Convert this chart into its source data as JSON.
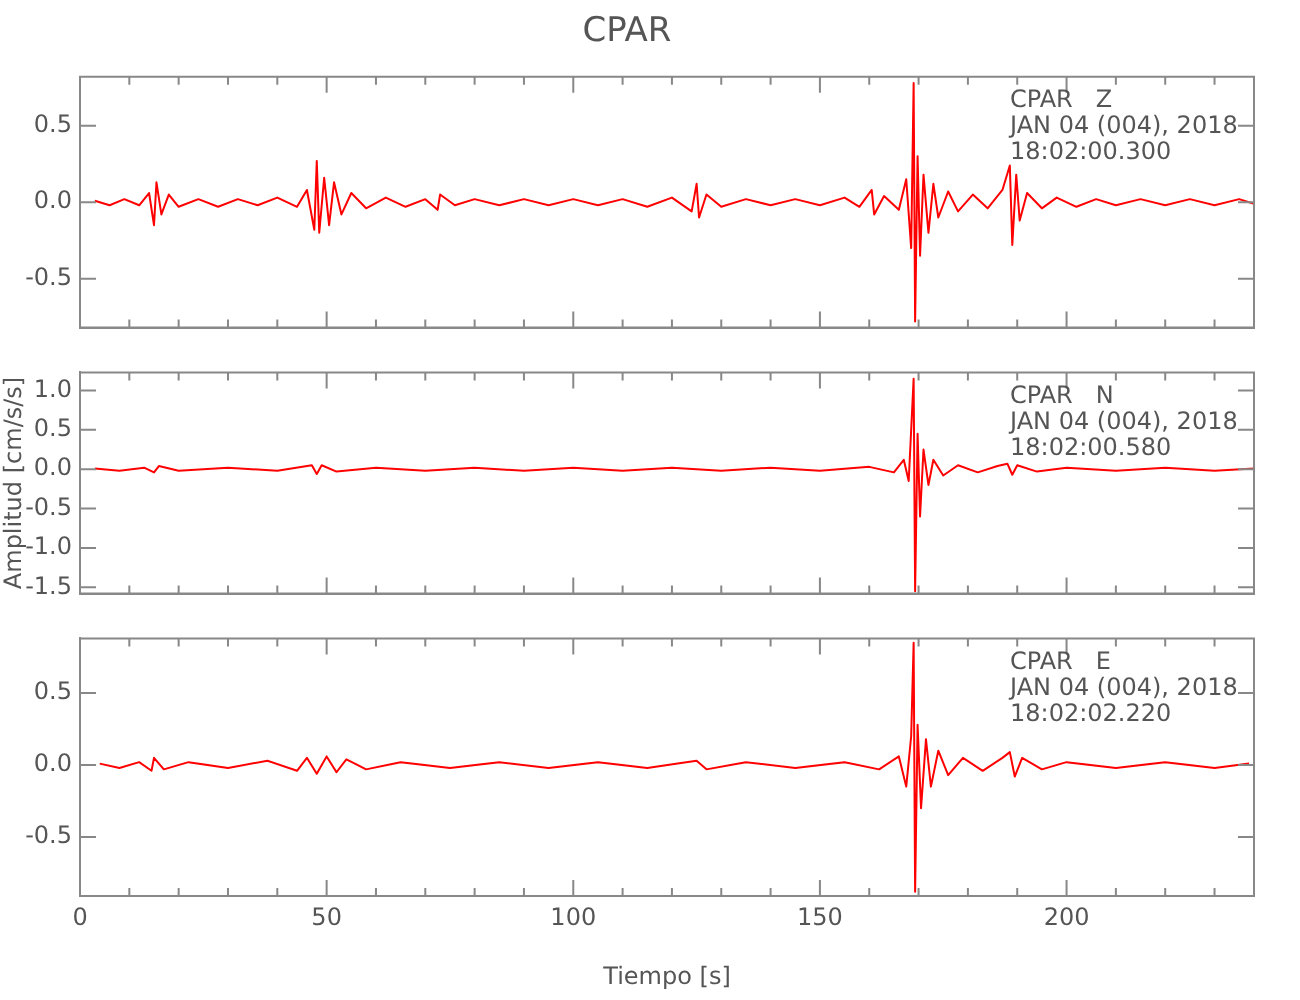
{
  "chart_data": [
    {
      "type": "line",
      "title": "CPAR",
      "annotations": [
        "CPAR   Z",
        "JAN 04 (004), 2018",
        "18:02:00.300"
      ],
      "xlim": [
        0,
        238
      ],
      "ylim": [
        -0.82,
        0.82
      ],
      "xticks": [
        0,
        {
          "value": 10,
          "label": null
        },
        {
          "value": 20,
          "label": null
        },
        {
          "value": 30,
          "label": null
        },
        {
          "value": 40,
          "label": null
        },
        50,
        {
          "value": 60,
          "label": null
        },
        {
          "value": 70,
          "label": null
        },
        {
          "value": 80,
          "label": null
        },
        {
          "value": 90,
          "label": null
        },
        100,
        {
          "value": 110,
          "label": null
        },
        {
          "value": 120,
          "label": null
        },
        {
          "value": 130,
          "label": null
        },
        {
          "value": 140,
          "label": null
        },
        150,
        {
          "value": 160,
          "label": null
        },
        {
          "value": 170,
          "label": null
        },
        {
          "value": 180,
          "label": null
        },
        {
          "value": 190,
          "label": null
        },
        200,
        {
          "value": 210,
          "label": null
        },
        {
          "value": 220,
          "label": null
        },
        {
          "value": 230,
          "label": null
        }
      ],
      "yticks": [
        {
          "value": -0.5,
          "label": "-0.5"
        },
        {
          "value": 0,
          "label": "0.0"
        },
        {
          "value": 0.5,
          "label": "0.5"
        }
      ],
      "tick_labels": "y",
      "grid": false,
      "legend": false,
      "marker": "none",
      "line_style": "solid",
      "series": [
        {
          "color": "#ff0000",
          "x": [
            3,
            6,
            9,
            12,
            14,
            15,
            15.5,
            16.5,
            18,
            20,
            24,
            28,
            32,
            36,
            40,
            44,
            46,
            47.5,
            48,
            48.5,
            49.5,
            50.5,
            51.5,
            53,
            55,
            58,
            62,
            66,
            70,
            72.5,
            73,
            76,
            80,
            85,
            90,
            95,
            100,
            105,
            110,
            115,
            120,
            124,
            125,
            125.5,
            127,
            130,
            135,
            140,
            145,
            150,
            155,
            158,
            160.5,
            161,
            163,
            166,
            167.5,
            168.5,
            169,
            169.3,
            169.8,
            170.3,
            171,
            172,
            173,
            174,
            176,
            178,
            181,
            184,
            187,
            188.5,
            189,
            189.8,
            190.5,
            192,
            195,
            198,
            202,
            206,
            210,
            215,
            220,
            225,
            230,
            235,
            238
          ],
          "values": [
            0.01,
            -0.02,
            0.02,
            -0.02,
            0.06,
            -0.15,
            0.13,
            -0.08,
            0.05,
            -0.03,
            0.02,
            -0.03,
            0.02,
            -0.02,
            0.03,
            -0.03,
            0.08,
            -0.18,
            0.27,
            -0.2,
            0.16,
            -0.15,
            0.13,
            -0.08,
            0.06,
            -0.04,
            0.03,
            -0.03,
            0.02,
            -0.05,
            0.05,
            -0.02,
            0.02,
            -0.02,
            0.02,
            -0.02,
            0.02,
            -0.02,
            0.02,
            -0.03,
            0.03,
            -0.06,
            0.12,
            -0.1,
            0.05,
            -0.03,
            0.02,
            -0.02,
            0.02,
            -0.02,
            0.03,
            -0.03,
            0.08,
            -0.08,
            0.04,
            -0.05,
            0.15,
            -0.3,
            0.78,
            -0.78,
            0.3,
            -0.35,
            0.18,
            -0.2,
            0.12,
            -0.1,
            0.07,
            -0.06,
            0.05,
            -0.04,
            0.08,
            0.24,
            -0.28,
            0.18,
            -0.12,
            0.06,
            -0.04,
            0.03,
            -0.03,
            0.02,
            -0.02,
            0.02,
            -0.02,
            0.02,
            -0.02,
            0.02,
            -0.01
          ]
        }
      ]
    },
    {
      "type": "line",
      "ylabel": "Amplitud [cm/s/s]",
      "annotations": [
        "CPAR   N",
        "JAN 04 (004), 2018",
        "18:02:00.580"
      ],
      "xlim": [
        0,
        238
      ],
      "ylim": [
        -1.58,
        1.23
      ],
      "xticks": [
        0,
        {
          "value": 10,
          "label": null
        },
        {
          "value": 20,
          "label": null
        },
        {
          "value": 30,
          "label": null
        },
        {
          "value": 40,
          "label": null
        },
        50,
        {
          "value": 60,
          "label": null
        },
        {
          "value": 70,
          "label": null
        },
        {
          "value": 80,
          "label": null
        },
        {
          "value": 90,
          "label": null
        },
        100,
        {
          "value": 110,
          "label": null
        },
        {
          "value": 120,
          "label": null
        },
        {
          "value": 130,
          "label": null
        },
        {
          "value": 140,
          "label": null
        },
        150,
        {
          "value": 160,
          "label": null
        },
        {
          "value": 170,
          "label": null
        },
        {
          "value": 180,
          "label": null
        },
        {
          "value": 190,
          "label": null
        },
        200,
        {
          "value": 210,
          "label": null
        },
        {
          "value": 220,
          "label": null
        },
        {
          "value": 230,
          "label": null
        }
      ],
      "yticks": [
        {
          "value": -1.5,
          "label": "-1.5"
        },
        {
          "value": -1,
          "label": "-1.0"
        },
        {
          "value": -0.5,
          "label": "-0.5"
        },
        {
          "value": 0,
          "label": "0.0"
        },
        {
          "value": 0.5,
          "label": "0.5"
        },
        {
          "value": 1,
          "label": "1.0"
        }
      ],
      "tick_labels": "y",
      "grid": false,
      "legend": false,
      "marker": "none",
      "line_style": "solid",
      "series": [
        {
          "color": "#ff0000",
          "x": [
            3,
            8,
            13,
            15,
            16,
            20,
            30,
            40,
            47,
            48,
            49,
            52,
            60,
            70,
            80,
            90,
            100,
            110,
            120,
            130,
            140,
            150,
            160,
            165,
            167,
            168,
            169,
            169.3,
            169.8,
            170.3,
            171,
            172,
            173,
            175,
            178,
            182,
            186,
            188,
            189,
            190,
            194,
            200,
            210,
            220,
            230,
            238
          ],
          "values": [
            0.01,
            -0.02,
            0.02,
            -0.04,
            0.04,
            -0.02,
            0.02,
            -0.02,
            0.05,
            -0.06,
            0.05,
            -0.03,
            0.02,
            -0.02,
            0.02,
            -0.02,
            0.02,
            -0.02,
            0.02,
            -0.02,
            0.02,
            -0.02,
            0.03,
            -0.04,
            0.12,
            -0.15,
            1.15,
            -1.55,
            0.45,
            -0.6,
            0.25,
            -0.2,
            0.12,
            -0.08,
            0.05,
            -0.04,
            0.04,
            0.07,
            -0.07,
            0.05,
            -0.03,
            0.02,
            -0.02,
            0.02,
            -0.02,
            0.01
          ]
        }
      ]
    },
    {
      "type": "line",
      "xlabel": "Tiempo [s]",
      "annotations": [
        "CPAR   E",
        "JAN 04 (004), 2018",
        "18:02:02.220"
      ],
      "xlim": [
        0,
        238
      ],
      "ylim": [
        -0.91,
        0.88
      ],
      "xticks": [
        0,
        {
          "value": 10,
          "label": null
        },
        {
          "value": 20,
          "label": null
        },
        {
          "value": 30,
          "label": null
        },
        {
          "value": 40,
          "label": null
        },
        50,
        {
          "value": 60,
          "label": null
        },
        {
          "value": 70,
          "label": null
        },
        {
          "value": 80,
          "label": null
        },
        {
          "value": 90,
          "label": null
        },
        100,
        {
          "value": 110,
          "label": null
        },
        {
          "value": 120,
          "label": null
        },
        {
          "value": 130,
          "label": null
        },
        {
          "value": 140,
          "label": null
        },
        150,
        {
          "value": 160,
          "label": null
        },
        {
          "value": 170,
          "label": null
        },
        {
          "value": 180,
          "label": null
        },
        {
          "value": 190,
          "label": null
        },
        200,
        {
          "value": 210,
          "label": null
        },
        {
          "value": 220,
          "label": null
        },
        {
          "value": 230,
          "label": null
        }
      ],
      "yticks": [
        {
          "value": -0.5,
          "label": "-0.5"
        },
        {
          "value": 0,
          "label": "0.0"
        },
        {
          "value": 0.5,
          "label": "0.5"
        }
      ],
      "grid": false,
      "legend": false,
      "marker": "none",
      "line_style": "solid",
      "series": [
        {
          "color": "#ff0000",
          "x": [
            4,
            8,
            12,
            14.5,
            15,
            17,
            22,
            30,
            38,
            44,
            46,
            48,
            50,
            52,
            54,
            58,
            65,
            75,
            85,
            95,
            105,
            115,
            125,
            127,
            135,
            145,
            155,
            162,
            166,
            167.5,
            168.5,
            169,
            169.3,
            169.8,
            170.5,
            171.5,
            172.5,
            174,
            176,
            179,
            183,
            187,
            188.5,
            189.5,
            191,
            195,
            200,
            210,
            220,
            230,
            237
          ],
          "values": [
            0.01,
            -0.02,
            0.02,
            -0.04,
            0.05,
            -0.03,
            0.02,
            -0.02,
            0.03,
            -0.04,
            0.05,
            -0.06,
            0.06,
            -0.05,
            0.04,
            -0.03,
            0.02,
            -0.02,
            0.02,
            -0.02,
            0.02,
            -0.02,
            0.03,
            -0.03,
            0.02,
            -0.02,
            0.02,
            -0.03,
            0.06,
            -0.15,
            0.2,
            0.85,
            -0.88,
            0.28,
            -0.3,
            0.18,
            -0.15,
            0.1,
            -0.07,
            0.05,
            -0.04,
            0.05,
            0.09,
            -0.08,
            0.05,
            -0.03,
            0.02,
            -0.02,
            0.02,
            -0.02,
            0.01
          ]
        }
      ]
    }
  ]
}
